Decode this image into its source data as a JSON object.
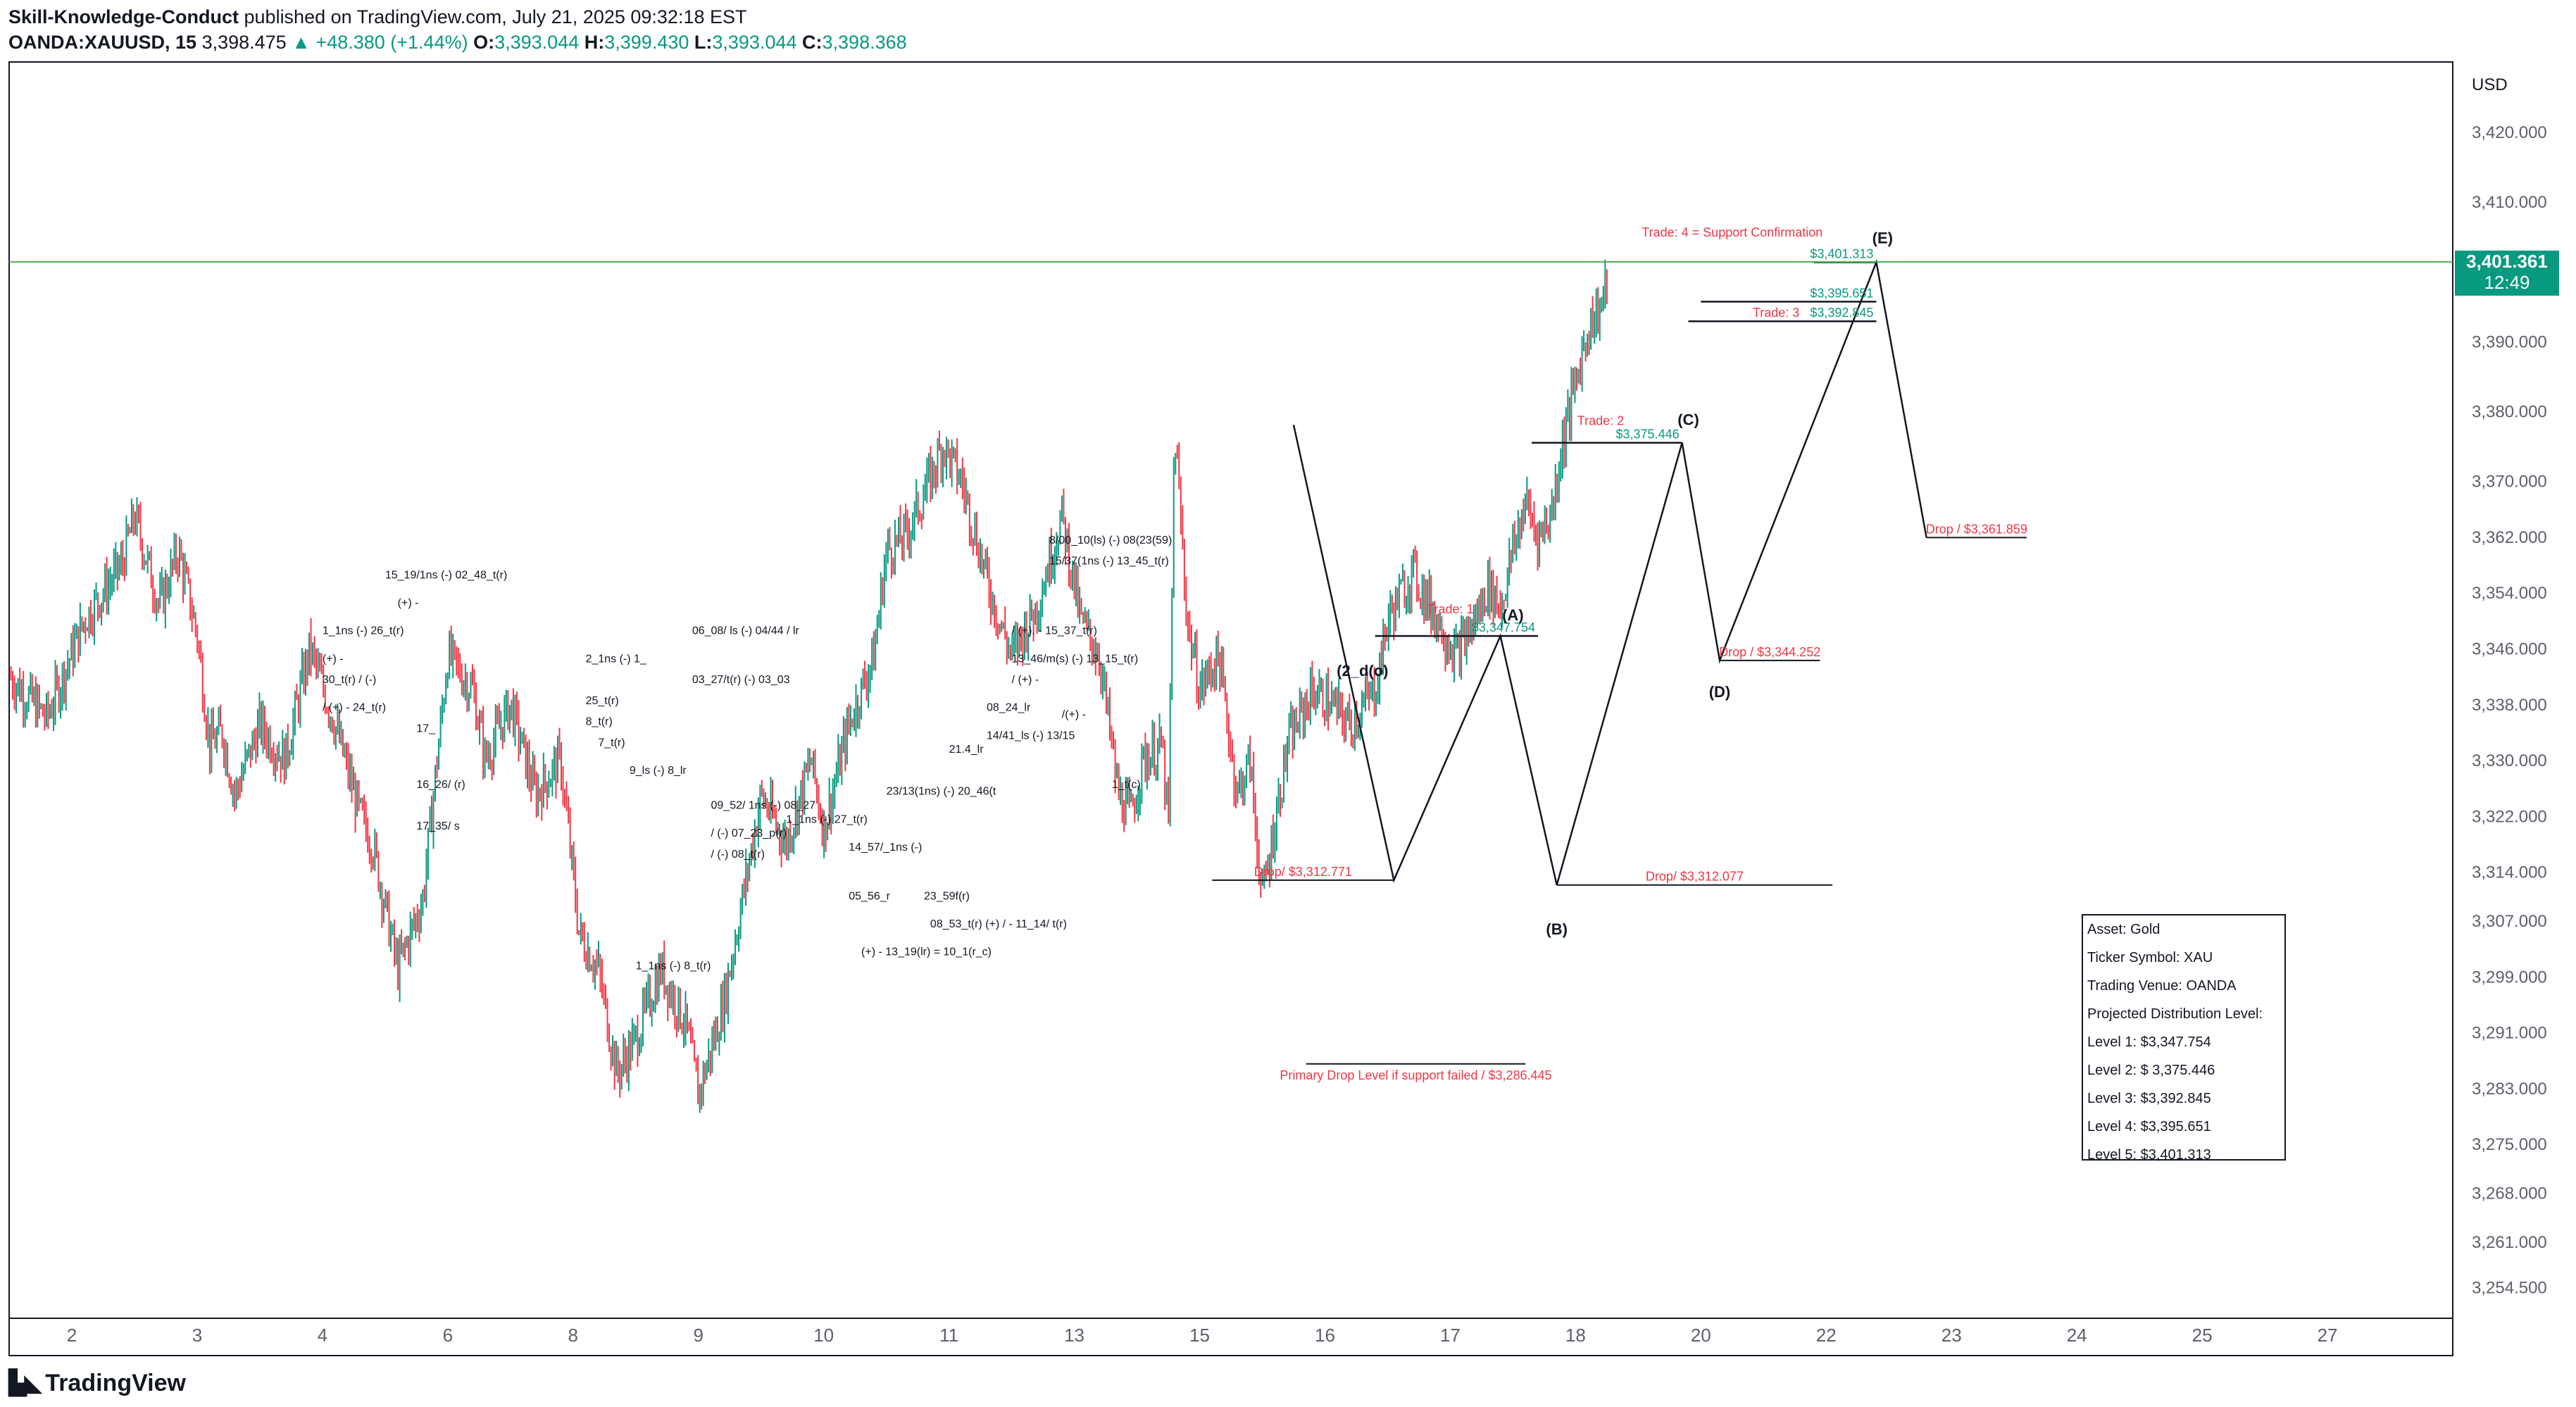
{
  "header": {
    "author": "Skill-Knowledge-Conduct",
    "published": "published on TradingView.com, July 21, 2025 09:32:18 EST",
    "symbol": "OANDA:XAUUSD, 15",
    "price": "3,398.475",
    "change": "▲ +48.380 (+1.44%)",
    "o_label": "O:",
    "o": "3,393.044",
    "h_label": "H:",
    "h": "3,399.430",
    "l_label": "L:",
    "l": "3,393.044",
    "c_label": "C:",
    "c": "3,398.368"
  },
  "colors": {
    "up": "#089981",
    "down": "#f23645",
    "line": "#131722",
    "green_line": "#4caf50",
    "red_text": "#f23645"
  },
  "chart_data": {
    "type": "candlestick",
    "currency": "USD",
    "current_price": "3,401.361",
    "countdown": "12:49",
    "current_price_value": 3401.361,
    "ylim": [
      3250,
      3430
    ],
    "y_ticks": [
      "3,420.000",
      "3,410.000",
      "3,401.361",
      "3,390.000",
      "3,380.000",
      "3,370.000",
      "3,362.000",
      "3,354.000",
      "3,346.000",
      "3,338.000",
      "3,330.000",
      "3,322.000",
      "3,314.000",
      "3,307.000",
      "3,299.000",
      "3,291.000",
      "3,283.000",
      "3,275.000",
      "3,268.000",
      "3,261.000",
      "3,254.500"
    ],
    "y_tick_values": [
      3420,
      3410,
      3401.361,
      3390,
      3380,
      3370,
      3362,
      3354,
      3346,
      3338,
      3330,
      3322,
      3314,
      3307,
      3299,
      3291,
      3283,
      3275,
      3268,
      3261,
      3254.5
    ],
    "x_ticks": [
      "2",
      "3",
      "4",
      "6",
      "8",
      "9",
      "10",
      "11",
      "13",
      "15",
      "16",
      "17",
      "18",
      "20",
      "22",
      "23",
      "24",
      "25",
      "27"
    ],
    "x_tick_positions": [
      0.5,
      1.5,
      2.5,
      3.5,
      4.5,
      5.5,
      6.5,
      7.5,
      8.5,
      9.5,
      10.5,
      11.5,
      12.5,
      13.5,
      14.5,
      15.5,
      16.5,
      17.5,
      18.5
    ],
    "price_path": [
      [
        0,
        3342
      ],
      [
        0.3,
        3336
      ],
      [
        0.6,
        3350
      ],
      [
        0.9,
        3358
      ],
      [
        1.0,
        3365
      ],
      [
        1.2,
        3352
      ],
      [
        1.35,
        3360
      ],
      [
        1.5,
        3348
      ],
      [
        1.6,
        3332
      ],
      [
        1.7,
        3334
      ],
      [
        1.8,
        3325
      ],
      [
        2.0,
        3335
      ],
      [
        2.2,
        3330
      ],
      [
        2.4,
        3346
      ],
      [
        2.6,
        3335
      ],
      [
        2.8,
        3322
      ],
      [
        2.9,
        3318
      ],
      [
        3.1,
        3300
      ],
      [
        3.3,
        3310
      ],
      [
        3.5,
        3345
      ],
      [
        3.7,
        3340
      ],
      [
        3.8,
        3330
      ],
      [
        4.0,
        3338
      ],
      [
        4.2,
        3325
      ],
      [
        4.4,
        3330
      ],
      [
        4.55,
        3305
      ],
      [
        4.7,
        3300
      ],
      [
        4.85,
        3285
      ],
      [
        5.0,
        3290
      ],
      [
        5.2,
        3300
      ],
      [
        5.4,
        3292
      ],
      [
        5.5,
        3282
      ],
      [
        5.7,
        3295
      ],
      [
        5.9,
        3315
      ],
      [
        6.0,
        3325
      ],
      [
        6.2,
        3318
      ],
      [
        6.4,
        3330
      ],
      [
        6.5,
        3320
      ],
      [
        6.7,
        3335
      ],
      [
        6.9,
        3345
      ],
      [
        7.0,
        3360
      ],
      [
        7.15,
        3362
      ],
      [
        7.3,
        3368
      ],
      [
        7.45,
        3375
      ],
      [
        7.6,
        3370
      ],
      [
        7.8,
        3356
      ],
      [
        7.9,
        3350
      ],
      [
        8.0,
        3345
      ],
      [
        8.2,
        3352
      ],
      [
        8.4,
        3365
      ],
      [
        8.55,
        3350
      ],
      [
        8.7,
        3345
      ],
      [
        8.85,
        3325
      ],
      [
        8.95,
        3322
      ],
      [
        9.05,
        3330
      ],
      [
        9.2,
        3332
      ],
      [
        9.25,
        3320
      ],
      [
        9.3,
        3378
      ],
      [
        9.4,
        3350
      ],
      [
        9.5,
        3340
      ],
      [
        9.65,
        3345
      ],
      [
        9.8,
        3325
      ],
      [
        9.9,
        3330
      ],
      [
        10.0,
        3310
      ],
      [
        10.2,
        3332
      ],
      [
        10.4,
        3340
      ],
      [
        10.55,
        3338
      ],
      [
        10.7,
        3335
      ],
      [
        10.9,
        3340
      ],
      [
        11.0,
        3350
      ],
      [
        11.2,
        3357
      ],
      [
        11.4,
        3350
      ],
      [
        11.55,
        3345
      ],
      [
        11.7,
        3350
      ],
      [
        11.8,
        3355
      ],
      [
        11.9,
        3352
      ],
      [
        12.0,
        3360
      ],
      [
        12.1,
        3367
      ],
      [
        12.2,
        3362
      ],
      [
        12.3,
        3365
      ],
      [
        12.4,
        3376
      ],
      [
        12.6,
        3392
      ],
      [
        12.7,
        3395
      ],
      [
        12.75,
        3398
      ]
    ],
    "annotations": {
      "wave_labels": [
        "(A)",
        "(B)",
        "(C)",
        "(D)",
        "(E)",
        "(2_d(o)"
      ],
      "levels": [
        {
          "label": "$3,347.754",
          "value": 3347.754
        },
        {
          "label": "$3,375.446",
          "value": 3375.446
        },
        {
          "label": "$3,392.845",
          "value": 3392.845
        },
        {
          "label": "$3,395.651",
          "value": 3395.651
        },
        {
          "label": "$3,401.313",
          "value": 3401.313
        }
      ],
      "trades": [
        "Trade: 1",
        "Trade: 2",
        "Trade: 3",
        "Trade: 4 = Support Confirmation"
      ],
      "drops": [
        {
          "label": "Drop/ $3,312.771",
          "value": 3312.771
        },
        {
          "label": "Drop/ $3,312.077",
          "value": 3312.077
        },
        {
          "label": "Drop / $3,344.252",
          "value": 3344.252
        },
        {
          "label": "Drop / $3,361.859",
          "value": 3361.859
        },
        {
          "label": "Primary Drop Level if support failed / $3,286.445",
          "value": 3286.445
        }
      ],
      "projection_path": [
        [
          10.25,
          3378
        ],
        [
          11.05,
          3312.771
        ],
        [
          11.9,
          3347.754
        ],
        [
          12.35,
          3312.077
        ],
        [
          13.35,
          3375.446
        ],
        [
          13.65,
          3344.252
        ],
        [
          14.9,
          3401.313
        ],
        [
          15.3,
          3361.859
        ]
      ],
      "notes": [
        "15_19/1ns (-) 02_48_t(r)",
        "(+) -",
        "1_1ns (-) 26_t(r)",
        "(+) -",
        "30_t(r) / (-)",
        "/ (+) - 24_t(r)",
        "17_",
        "16_26/ (r)",
        "17_35/ s",
        "06_08/ ls (-) 04/44 / lr",
        "2_1ns (-) 1_",
        "03_27/t(r) (-) 03_03",
        "25_t(r)",
        "8_t(r)",
        "7_t(r)",
        "9_ls (-) 8_lr",
        "09_52/ 1ns (-) 08_27",
        "/ (-) 07_23_p(r)",
        "/ (-) 08_t(r)",
        "1_1ns (-) 27_t(r)",
        "14_57/_1ns (-)",
        "05_56_r",
        "23/13(1ns) (-) 20_46(t",
        "21.4_lr",
        "8/00_10(ls) (-) 08(23(59)",
        "15/37(1ns (-) 13_45_t(r)",
        "/ (+). - 15_37_t(r)",
        "13_46/m(s) (-) 13_15_t(r)",
        "/ (+) -",
        "08_24_lr",
        "14/41_ls (-) 13/15",
        "/(+) -",
        "1_t(c)",
        "23_59f(r)",
        "08_53_t(r) (+) / - 11_14/ t(r)",
        "(+) - 13_19(lr) = 10_1(r_c)",
        "1_1ns (-) 8_t(r)"
      ]
    }
  },
  "info_box": {
    "lines": [
      "Asset: Gold",
      "Ticker Symbol: XAU",
      "Trading Venue: OANDA",
      "Projected Distribution Level:",
      "Level 1: $3,347.754",
      "Level 2: $ 3,375.446",
      "Level 3: $3,392.845",
      "Level 4: $3,395.651",
      "Level 5: $3,401.313"
    ]
  },
  "footer": {
    "brand": "TradingView",
    "icon": "tradingview-logo-icon"
  }
}
